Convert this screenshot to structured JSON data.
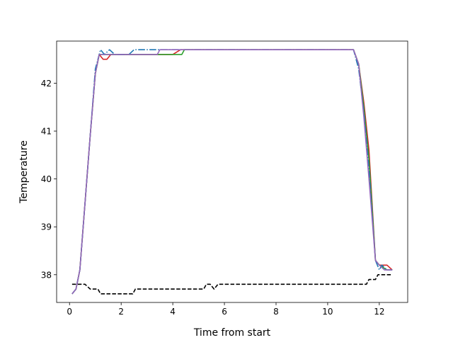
{
  "chart_data": {
    "type": "line",
    "title": "",
    "xlabel": "Time from start",
    "ylabel": "Temperature",
    "xlim": [
      -0.5,
      13.1
    ],
    "ylim": [
      37.42,
      42.88
    ],
    "xticks": [
      0,
      2,
      4,
      6,
      8,
      10,
      12
    ],
    "yticks": [
      38,
      39,
      40,
      41,
      42
    ],
    "grid": false,
    "legend": "none",
    "series": [
      {
        "color": "#d62728",
        "style": "solid",
        "x": [
          0.1,
          0.25,
          0.4,
          0.6,
          0.8,
          1.0,
          1.15,
          1.3,
          1.45,
          1.6,
          2.0,
          3.0,
          3.5,
          4.0,
          4.3,
          5.0,
          6.0,
          8.0,
          10.0,
          11.0,
          11.2,
          11.4,
          11.6,
          11.85,
          12.0,
          12.3,
          12.5
        ],
        "y": [
          37.6,
          37.7,
          38.1,
          39.5,
          40.9,
          42.2,
          42.6,
          42.5,
          42.5,
          42.6,
          42.6,
          42.6,
          42.6,
          42.6,
          42.7,
          42.7,
          42.7,
          42.7,
          42.7,
          42.7,
          42.4,
          41.6,
          40.6,
          38.3,
          38.2,
          38.2,
          38.1
        ]
      },
      {
        "color": "#2ca02c",
        "style": "solid",
        "x": [
          0.1,
          0.25,
          0.4,
          0.6,
          0.8,
          1.0,
          1.15,
          1.3,
          1.6,
          2.0,
          3.0,
          4.0,
          4.35,
          4.45,
          5.0,
          6.0,
          8.0,
          10.0,
          11.0,
          11.2,
          11.4,
          11.6,
          11.85,
          12.0,
          12.3,
          12.5
        ],
        "y": [
          37.6,
          37.7,
          38.1,
          39.5,
          40.9,
          42.2,
          42.6,
          42.6,
          42.6,
          42.6,
          42.6,
          42.6,
          42.6,
          42.7,
          42.7,
          42.7,
          42.7,
          42.7,
          42.7,
          42.4,
          41.5,
          40.4,
          38.3,
          38.2,
          38.1,
          38.1
        ]
      },
      {
        "color": "#1f77b4",
        "style": "dashdot",
        "x": [
          0.1,
          0.25,
          0.4,
          0.6,
          0.8,
          1.0,
          1.2,
          1.35,
          1.55,
          1.75,
          2.0,
          2.3,
          2.5,
          3.0,
          4.0,
          5.0,
          6.0,
          8.0,
          10.0,
          11.0,
          11.2,
          11.4,
          11.6,
          11.85,
          12.0,
          12.1,
          12.3,
          12.5
        ],
        "y": [
          37.6,
          37.7,
          38.1,
          39.5,
          40.9,
          42.3,
          42.7,
          42.6,
          42.7,
          42.6,
          42.6,
          42.6,
          42.7,
          42.7,
          42.7,
          42.7,
          42.7,
          42.7,
          42.7,
          42.7,
          42.3,
          41.4,
          40.2,
          38.3,
          38.1,
          38.2,
          38.1,
          38.1
        ]
      },
      {
        "color": "#9467bd",
        "style": "solid",
        "x": [
          0.1,
          0.25,
          0.4,
          0.6,
          0.8,
          1.0,
          1.15,
          1.3,
          1.6,
          2.0,
          3.0,
          3.4,
          3.5,
          4.0,
          5.0,
          6.0,
          8.0,
          10.0,
          11.0,
          11.2,
          11.4,
          11.6,
          11.85,
          12.0,
          12.2,
          12.5
        ],
        "y": [
          37.6,
          37.7,
          38.1,
          39.5,
          40.9,
          42.2,
          42.6,
          42.6,
          42.6,
          42.6,
          42.6,
          42.6,
          42.7,
          42.7,
          42.7,
          42.7,
          42.7,
          42.7,
          42.7,
          42.4,
          41.3,
          40.0,
          38.3,
          38.2,
          38.1,
          38.1
        ]
      },
      {
        "color": "#000000",
        "style": "dashed",
        "x": [
          0.1,
          0.6,
          0.8,
          1.1,
          1.2,
          1.5,
          2.0,
          2.45,
          2.55,
          3.0,
          4.0,
          5.2,
          5.3,
          5.45,
          5.6,
          5.75,
          5.9,
          6.0,
          8.0,
          10.0,
          11.0,
          11.5,
          11.6,
          11.85,
          11.95,
          12.5
        ],
        "y": [
          37.8,
          37.8,
          37.7,
          37.7,
          37.6,
          37.6,
          37.6,
          37.6,
          37.7,
          37.7,
          37.7,
          37.7,
          37.8,
          37.8,
          37.7,
          37.8,
          37.8,
          37.8,
          37.8,
          37.8,
          37.8,
          37.8,
          37.9,
          37.9,
          38.0,
          38.0
        ]
      }
    ]
  }
}
